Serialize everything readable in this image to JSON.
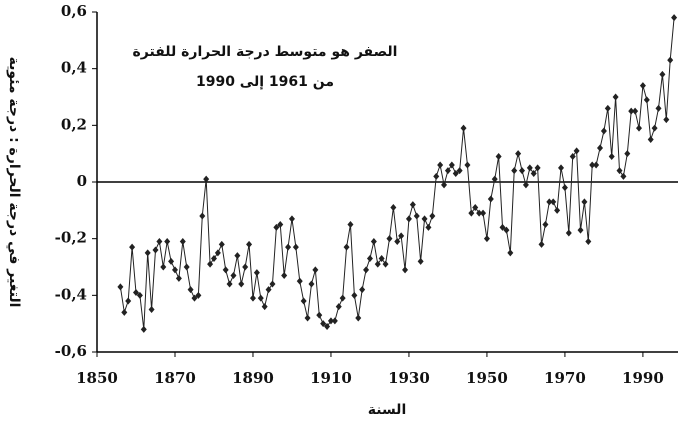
{
  "chart_data": {
    "type": "line",
    "title": "الصفر هو متوسط درجة الحرارة للفترة",
    "subtitle": "من 1961 إلى 1990",
    "x_label": "السنة",
    "y_label": "التغير في درجة الحرارة : درجة مئوية",
    "x": [
      1856,
      1857,
      1858,
      1859,
      1860,
      1861,
      1862,
      1863,
      1864,
      1865,
      1866,
      1867,
      1868,
      1869,
      1870,
      1871,
      1872,
      1873,
      1874,
      1875,
      1876,
      1877,
      1878,
      1879,
      1880,
      1881,
      1882,
      1883,
      1884,
      1885,
      1886,
      1887,
      1888,
      1889,
      1890,
      1891,
      1892,
      1893,
      1894,
      1895,
      1896,
      1897,
      1898,
      1899,
      1900,
      1901,
      1902,
      1903,
      1904,
      1905,
      1906,
      1907,
      1908,
      1909,
      1910,
      1911,
      1912,
      1913,
      1914,
      1915,
      1916,
      1917,
      1918,
      1919,
      1920,
      1921,
      1922,
      1923,
      1924,
      1925,
      1926,
      1927,
      1928,
      1929,
      1930,
      1931,
      1932,
      1933,
      1934,
      1935,
      1936,
      1937,
      1938,
      1939,
      1940,
      1941,
      1942,
      1943,
      1944,
      1945,
      1946,
      1947,
      1948,
      1949,
      1950,
      1951,
      1952,
      1953,
      1954,
      1955,
      1956,
      1957,
      1958,
      1959,
      1960,
      1961,
      1962,
      1963,
      1964,
      1965,
      1966,
      1967,
      1968,
      1969,
      1970,
      1971,
      1972,
      1973,
      1974,
      1975,
      1976,
      1977,
      1978,
      1979,
      1980,
      1981,
      1982,
      1983,
      1984,
      1985,
      1986,
      1987,
      1988,
      1989,
      1990,
      1991,
      1992,
      1993,
      1994,
      1995,
      1996,
      1997,
      1998
    ],
    "series": [
      {
        "color": "#222222",
        "values": [
          -0.37,
          -0.46,
          -0.42,
          -0.23,
          -0.39,
          -0.4,
          -0.52,
          -0.25,
          -0.45,
          -0.24,
          -0.21,
          -0.3,
          -0.21,
          -0.28,
          -0.31,
          -0.34,
          -0.21,
          -0.3,
          -0.38,
          -0.41,
          -0.4,
          -0.12,
          0.01,
          -0.29,
          -0.27,
          -0.25,
          -0.22,
          -0.31,
          -0.36,
          -0.33,
          -0.26,
          -0.36,
          -0.3,
          -0.22,
          -0.41,
          -0.32,
          -0.41,
          -0.44,
          -0.38,
          -0.36,
          -0.16,
          -0.15,
          -0.33,
          -0.23,
          -0.13,
          -0.23,
          -0.35,
          -0.42,
          -0.48,
          -0.36,
          -0.31,
          -0.47,
          -0.5,
          -0.51,
          -0.49,
          -0.49,
          -0.44,
          -0.41,
          -0.23,
          -0.15,
          -0.4,
          -0.48,
          -0.38,
          -0.31,
          -0.27,
          -0.21,
          -0.29,
          -0.27,
          -0.29,
          -0.2,
          -0.09,
          -0.21,
          -0.19,
          -0.31,
          -0.13,
          -0.08,
          -0.12,
          -0.28,
          -0.13,
          -0.16,
          -0.12,
          0.02,
          0.06,
          -0.01,
          0.04,
          0.06,
          0.03,
          0.04,
          0.19,
          0.06,
          -0.11,
          -0.09,
          -0.11,
          -0.11,
          -0.2,
          -0.06,
          0.01,
          0.09,
          -0.16,
          -0.17,
          -0.25,
          0.04,
          0.1,
          0.04,
          -0.01,
          0.05,
          0.03,
          0.05,
          -0.22,
          -0.15,
          -0.07,
          -0.07,
          -0.1,
          0.05,
          -0.02,
          -0.18,
          0.09,
          0.11,
          -0.17,
          -0.07,
          -0.21,
          0.06,
          0.06,
          0.12,
          0.18,
          0.26,
          0.09,
          0.3,
          0.04,
          0.02,
          0.1,
          0.25,
          0.25,
          0.19,
          0.34,
          0.29,
          0.15,
          0.19,
          0.26,
          0.38,
          0.22,
          0.43,
          0.58
        ]
      }
    ],
    "xlim": [
      1850,
      1999
    ],
    "xticks": [
      1850,
      1870,
      1890,
      1910,
      1930,
      1950,
      1970,
      1990
    ],
    "ylim": [
      -0.6,
      0.6
    ],
    "yticks": [
      {
        "value": 0.6,
        "label": "0,6"
      },
      {
        "value": 0.4,
        "label": "0,4"
      },
      {
        "value": 0.2,
        "label": "0,2"
      },
      0,
      {
        "value": -0.2,
        "label": "-0,2"
      },
      {
        "value": -0.4,
        "label": "-0,4"
      },
      {
        "value": -0.6,
        "label": "-0,6"
      }
    ]
  }
}
